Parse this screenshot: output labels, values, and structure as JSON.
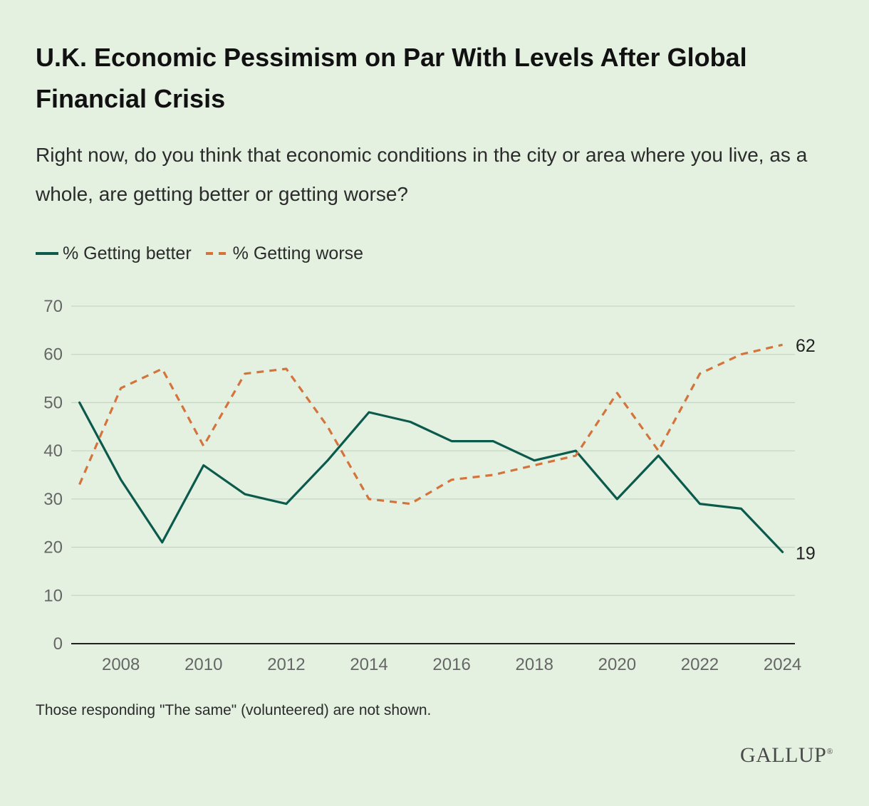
{
  "title": "U.K. Economic Pessimism on Par With Levels After Global Financial Crisis",
  "subtitle": "Right now, do you think that economic conditions in the city or area where you live, as a whole, are getting better or getting worse?",
  "note": "Those responding \"The same\" (volunteered) are not shown.",
  "brand": "GALLUP",
  "colors": {
    "better": "#0b5a4c",
    "worse": "#d4733c",
    "background": "#e4f1e1",
    "grid": "#c7d6c4"
  },
  "chart_data": {
    "type": "line",
    "x": [
      2007,
      2008,
      2009,
      2010,
      2011,
      2012,
      2013,
      2014,
      2015,
      2016,
      2017,
      2018,
      2019,
      2020,
      2021,
      2022,
      2023,
      2024
    ],
    "series": [
      {
        "name": "% Getting better",
        "style": "solid",
        "color": "#0b5a4c",
        "values": [
          50,
          34,
          21,
          37,
          31,
          29,
          38,
          48,
          46,
          42,
          42,
          38,
          40,
          30,
          39,
          29,
          28,
          19
        ],
        "end_label": "19"
      },
      {
        "name": "% Getting worse",
        "style": "dashed",
        "color": "#d4733c",
        "values": [
          33,
          53,
          57,
          41,
          56,
          57,
          45,
          30,
          29,
          34,
          35,
          37,
          39,
          52,
          40,
          56,
          60,
          62
        ],
        "end_label": "62"
      }
    ],
    "xticks": [
      "2008",
      "2010",
      "2012",
      "2014",
      "2016",
      "2018",
      "2020",
      "2022",
      "2024"
    ],
    "yticks": [
      "0",
      "10",
      "20",
      "30",
      "40",
      "50",
      "60",
      "70"
    ],
    "ylim": [
      0,
      70
    ],
    "xlim": [
      2006.8,
      2024.3
    ],
    "grid": true,
    "legend_position": "top-left"
  }
}
